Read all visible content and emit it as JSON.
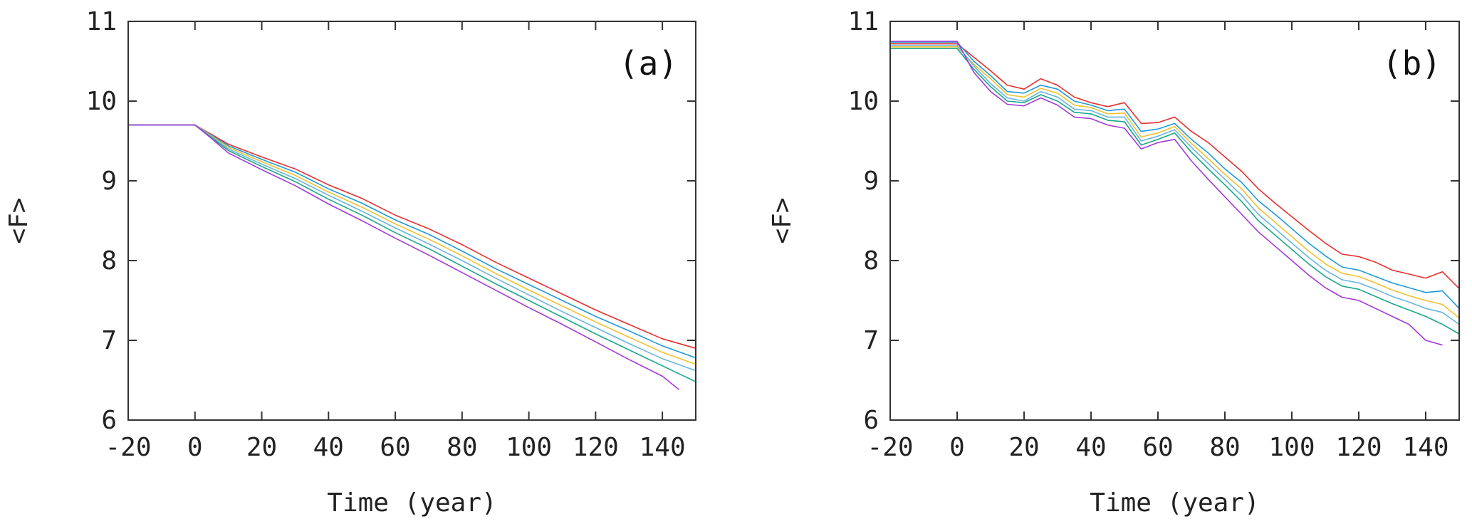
{
  "chart_data": [
    {
      "type": "line",
      "panel_label": "(a)",
      "xlabel": "Time (year)",
      "ylabel": "<F>",
      "xlim": [
        -20,
        150
      ],
      "ylim": [
        6,
        11
      ],
      "xticks": [
        -20,
        0,
        20,
        40,
        60,
        80,
        100,
        120,
        140
      ],
      "yticks": [
        6,
        7,
        8,
        9,
        10,
        11
      ],
      "grid": false,
      "series": [
        {
          "color": "#e8302f",
          "x": [
            -20,
            0,
            5,
            10,
            20,
            30,
            40,
            50,
            60,
            70,
            80,
            90,
            100,
            110,
            120,
            130,
            140,
            150
          ],
          "y": [
            9.7,
            9.7,
            9.58,
            9.46,
            9.3,
            9.15,
            8.95,
            8.78,
            8.57,
            8.4,
            8.2,
            7.98,
            7.78,
            7.58,
            7.38,
            7.2,
            7.02,
            6.9
          ]
        },
        {
          "color": "#1f9ad6",
          "x": [
            -20,
            0,
            5,
            10,
            20,
            30,
            40,
            50,
            60,
            70,
            80,
            90,
            100,
            110,
            120,
            130,
            140,
            150
          ],
          "y": [
            9.7,
            9.7,
            9.57,
            9.44,
            9.27,
            9.11,
            8.9,
            8.72,
            8.51,
            8.33,
            8.12,
            7.9,
            7.7,
            7.5,
            7.3,
            7.12,
            6.93,
            6.78
          ]
        },
        {
          "color": "#f2c12e",
          "x": [
            -20,
            0,
            5,
            10,
            20,
            30,
            40,
            50,
            60,
            70,
            80,
            90,
            100,
            110,
            120,
            130,
            140,
            150
          ],
          "y": [
            9.7,
            9.7,
            9.56,
            9.42,
            9.24,
            9.07,
            8.86,
            8.67,
            8.46,
            8.27,
            8.06,
            7.84,
            7.63,
            7.43,
            7.23,
            7.04,
            6.85,
            6.7
          ]
        },
        {
          "color": "#67b6e0",
          "x": [
            -20,
            0,
            5,
            10,
            20,
            30,
            40,
            50,
            60,
            70,
            80,
            90,
            100,
            110,
            120,
            130,
            140,
            150
          ],
          "y": [
            9.7,
            9.7,
            9.55,
            9.4,
            9.21,
            9.03,
            8.82,
            8.62,
            8.41,
            8.21,
            8.0,
            7.78,
            7.57,
            7.36,
            7.16,
            6.96,
            6.77,
            6.62
          ]
        },
        {
          "color": "#1aa68a",
          "x": [
            -20,
            0,
            5,
            10,
            20,
            30,
            40,
            50,
            60,
            70,
            80,
            90,
            100,
            110,
            120,
            130,
            140,
            150
          ],
          "y": [
            9.7,
            9.7,
            9.54,
            9.38,
            9.18,
            8.99,
            8.77,
            8.57,
            8.35,
            8.15,
            7.93,
            7.71,
            7.5,
            7.29,
            7.08,
            6.88,
            6.68,
            6.48
          ]
        },
        {
          "color": "#a23ad8",
          "x": [
            -20,
            0,
            5,
            10,
            20,
            30,
            40,
            50,
            60,
            70,
            80,
            90,
            100,
            110,
            120,
            130,
            140,
            145
          ],
          "y": [
            9.7,
            9.7,
            9.53,
            9.35,
            9.14,
            8.94,
            8.71,
            8.5,
            8.28,
            8.07,
            7.85,
            7.63,
            7.41,
            7.2,
            6.98,
            6.76,
            6.55,
            6.38
          ]
        }
      ]
    },
    {
      "type": "line",
      "panel_label": "(b)",
      "xlabel": "Time (year)",
      "ylabel": "<F>",
      "xlim": [
        -20,
        150
      ],
      "ylim": [
        6,
        11
      ],
      "xticks": [
        -20,
        0,
        20,
        40,
        60,
        80,
        100,
        120,
        140
      ],
      "yticks": [
        6,
        7,
        8,
        9,
        10,
        11
      ],
      "grid": false,
      "series": [
        {
          "color": "#e8302f",
          "x": [
            -20,
            0,
            5,
            10,
            15,
            20,
            25,
            30,
            35,
            40,
            45,
            50,
            55,
            60,
            65,
            70,
            75,
            80,
            85,
            90,
            95,
            100,
            105,
            110,
            115,
            120,
            125,
            130,
            135,
            140,
            145,
            150
          ],
          "y": [
            10.72,
            10.72,
            10.55,
            10.38,
            10.2,
            10.15,
            10.28,
            10.2,
            10.05,
            9.98,
            9.93,
            9.98,
            9.72,
            9.73,
            9.8,
            9.62,
            9.48,
            9.3,
            9.12,
            8.9,
            8.72,
            8.55,
            8.38,
            8.22,
            8.08,
            8.05,
            7.98,
            7.88,
            7.83,
            7.78,
            7.86,
            7.65
          ]
        },
        {
          "color": "#1f9ad6",
          "x": [
            -20,
            0,
            5,
            10,
            15,
            20,
            25,
            30,
            35,
            40,
            45,
            50,
            55,
            60,
            65,
            70,
            75,
            80,
            85,
            90,
            95,
            100,
            105,
            110,
            115,
            120,
            125,
            130,
            135,
            140,
            145,
            150
          ],
          "y": [
            10.74,
            10.74,
            10.5,
            10.32,
            10.12,
            10.1,
            10.2,
            10.15,
            10.0,
            9.95,
            9.88,
            9.9,
            9.62,
            9.65,
            9.72,
            9.52,
            9.35,
            9.15,
            8.98,
            8.75,
            8.58,
            8.4,
            8.22,
            8.06,
            7.92,
            7.88,
            7.8,
            7.72,
            7.66,
            7.6,
            7.62,
            7.4
          ]
        },
        {
          "color": "#f2c12e",
          "x": [
            -20,
            0,
            5,
            10,
            15,
            20,
            25,
            30,
            35,
            40,
            45,
            50,
            55,
            60,
            65,
            70,
            75,
            80,
            85,
            90,
            95,
            100,
            105,
            110,
            115,
            120,
            125,
            130,
            135,
            140,
            145,
            150
          ],
          "y": [
            10.68,
            10.68,
            10.46,
            10.28,
            10.08,
            10.05,
            10.16,
            10.1,
            9.95,
            9.92,
            9.84,
            9.85,
            9.55,
            9.6,
            9.68,
            9.47,
            9.28,
            9.08,
            8.9,
            8.66,
            8.48,
            8.3,
            8.12,
            7.96,
            7.84,
            7.8,
            7.72,
            7.63,
            7.56,
            7.5,
            7.45,
            7.28
          ]
        },
        {
          "color": "#67b6e0",
          "x": [
            -20,
            0,
            5,
            10,
            15,
            20,
            25,
            30,
            35,
            40,
            45,
            50,
            55,
            60,
            65,
            70,
            75,
            80,
            85,
            90,
            95,
            100,
            105,
            110,
            115,
            120,
            125,
            130,
            135,
            140,
            145,
            150
          ],
          "y": [
            10.7,
            10.7,
            10.44,
            10.22,
            10.04,
            10.0,
            10.12,
            10.05,
            9.9,
            9.88,
            9.8,
            9.8,
            9.5,
            9.56,
            9.64,
            9.42,
            9.22,
            9.02,
            8.82,
            8.58,
            8.4,
            8.22,
            8.04,
            7.88,
            7.76,
            7.72,
            7.64,
            7.55,
            7.48,
            7.4,
            7.35,
            7.2
          ]
        },
        {
          "color": "#1aa68a",
          "x": [
            -20,
            0,
            5,
            10,
            15,
            20,
            25,
            30,
            35,
            40,
            45,
            50,
            55,
            60,
            65,
            70,
            75,
            80,
            85,
            90,
            95,
            100,
            105,
            110,
            115,
            120,
            125,
            130,
            135,
            140,
            145,
            150
          ],
          "y": [
            10.66,
            10.66,
            10.4,
            10.18,
            10.0,
            9.98,
            10.08,
            10.0,
            9.86,
            9.84,
            9.76,
            9.74,
            9.45,
            9.52,
            9.6,
            9.36,
            9.15,
            8.95,
            8.74,
            8.5,
            8.32,
            8.14,
            7.96,
            7.8,
            7.68,
            7.64,
            7.55,
            7.46,
            7.38,
            7.3,
            7.2,
            7.08
          ]
        },
        {
          "color": "#a23ad8",
          "x": [
            -20,
            0,
            5,
            10,
            15,
            20,
            25,
            30,
            35,
            40,
            45,
            50,
            55,
            60,
            65,
            70,
            75,
            80,
            85,
            90,
            95,
            100,
            105,
            110,
            115,
            120,
            125,
            130,
            135,
            140,
            145
          ],
          "y": [
            10.75,
            10.75,
            10.36,
            10.12,
            9.96,
            9.94,
            10.04,
            9.95,
            9.8,
            9.78,
            9.7,
            9.66,
            9.4,
            9.48,
            9.52,
            9.25,
            9.02,
            8.8,
            8.58,
            8.36,
            8.18,
            8.0,
            7.82,
            7.66,
            7.54,
            7.5,
            7.4,
            7.3,
            7.2,
            7.0,
            6.94
          ]
        }
      ]
    }
  ]
}
